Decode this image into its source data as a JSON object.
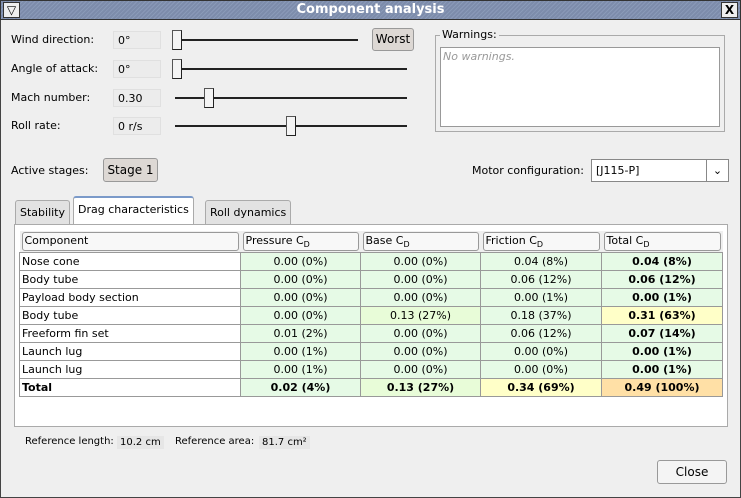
{
  "window": {
    "title": "Component analysis"
  },
  "controls": [
    {
      "label": "Wind direction:",
      "value": "0°",
      "slider_fraction": 0
    },
    {
      "label": "Angle of attack:",
      "value": "0°",
      "slider_fraction": 0
    },
    {
      "label": "Mach number:",
      "value": "0.30",
      "slider_fraction": 0.13
    },
    {
      "label": "Roll rate:",
      "value": "0 r/s",
      "slider_fraction": 0.5
    }
  ],
  "worst_button": "Worst",
  "warnings": {
    "title": "Warnings:",
    "text": "No warnings."
  },
  "stages": {
    "label": "Active stages:",
    "button": "Stage 1"
  },
  "motor": {
    "label": "Motor configuration:",
    "value": "[J115-P]"
  },
  "tabs": [
    "Stability",
    "Drag characteristics",
    "Roll dynamics"
  ],
  "active_tab": "Drag characteristics",
  "table": {
    "headers": [
      "Component",
      "Pressure C",
      "Base C",
      "Friction C",
      "Total C"
    ],
    "subscript": "D",
    "rows": [
      [
        "Nose cone",
        "0.00 (0%)",
        "0.00 (0%)",
        "0.04 (8%)",
        "0.04 (8%)"
      ],
      [
        "Body tube",
        "0.00 (0%)",
        "0.00 (0%)",
        "0.06 (12%)",
        "0.06 (12%)"
      ],
      [
        "Payload body section",
        "0.00 (0%)",
        "0.00 (0%)",
        "0.00 (1%)",
        "0.00 (1%)"
      ],
      [
        "Body tube",
        "0.00 (0%)",
        "0.13 (27%)",
        "0.18 (37%)",
        "0.31 (63%)"
      ],
      [
        "Freeform fin set",
        "0.01 (2%)",
        "0.00 (0%)",
        "0.06 (12%)",
        "0.07 (14%)"
      ],
      [
        "Launch lug",
        "0.00 (1%)",
        "0.00 (0%)",
        "0.00 (0%)",
        "0.00 (1%)"
      ],
      [
        "Launch lug",
        "0.00 (1%)",
        "0.00 (0%)",
        "0.00 (0%)",
        "0.00 (1%)"
      ],
      [
        "Total",
        "0.02 (4%)",
        "0.13 (27%)",
        "0.34 (69%)",
        "0.49 (100%)"
      ]
    ],
    "cell_classes": [
      [
        "g",
        "g",
        "g",
        "g"
      ],
      [
        "g",
        "g",
        "g",
        "g"
      ],
      [
        "g",
        "g",
        "g",
        "g"
      ],
      [
        "g",
        "lg",
        "g",
        "y"
      ],
      [
        "g",
        "g",
        "g",
        "g"
      ],
      [
        "g",
        "g",
        "g",
        "g"
      ],
      [
        "g",
        "g",
        "g",
        "g"
      ],
      [
        "g",
        "lg",
        "y",
        "o"
      ]
    ]
  },
  "reference": {
    "length_label": "Reference length:",
    "length": "10.2 cm",
    "area_label": "Reference area:",
    "area": "81.7 cm²"
  },
  "close_button": "Close"
}
